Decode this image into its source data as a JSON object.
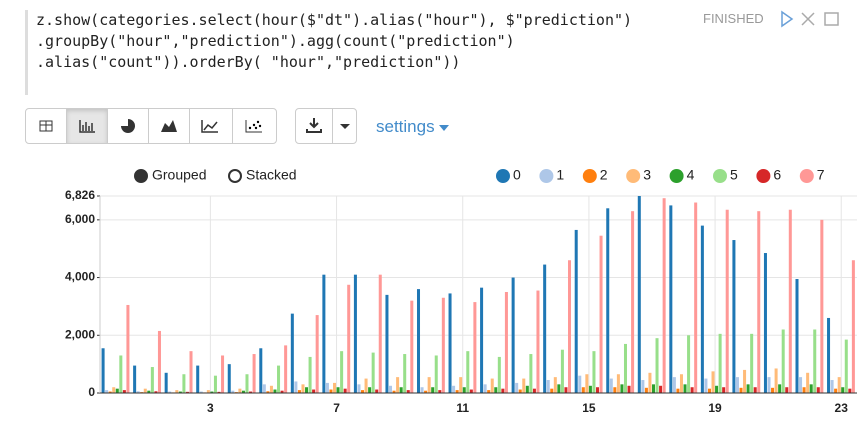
{
  "code": [
    "z.show(categories.select(hour($\"dt\").alias(\"hour\"), $\"prediction\")",
    ".groupBy(\"hour\",\"prediction\").agg(count(\"prediction\")",
    ".alias(\"count\")).orderBy( \"hour\",\"prediction\"))"
  ],
  "status": "FINISHED",
  "settings": "settings",
  "chart_data": {
    "type": "bar",
    "modes": [
      "Grouped",
      "Stacked"
    ],
    "categories": [
      null,
      null,
      null,
      "3",
      null,
      null,
      null,
      "7",
      null,
      null,
      null,
      "11",
      null,
      null,
      null,
      "15",
      null,
      null,
      null,
      "19",
      null,
      null,
      null,
      "23"
    ],
    "ylim": [
      0,
      6826
    ],
    "yticks": [
      0,
      {
        "value": 2000,
        "label": "2,000"
      },
      {
        "value": 4000,
        "label": "4,000"
      },
      {
        "value": 6000,
        "label": "6,000"
      },
      {
        "value": 6826,
        "label": "6,826"
      }
    ],
    "grid": true,
    "series": [
      {
        "name": "0",
        "color": "#1f77b4",
        "values": [
          1550,
          950,
          700,
          950,
          1000,
          1550,
          2750,
          4100,
          4100,
          3400,
          3600,
          3450,
          3650,
          4000,
          4450,
          5650,
          6400,
          6826,
          6500,
          5800,
          5300,
          4850,
          3950,
          2600
        ]
      },
      {
        "name": "1",
        "color": "#aec7e8",
        "values": [
          100,
          60,
          50,
          50,
          80,
          300,
          400,
          350,
          300,
          250,
          200,
          250,
          300,
          350,
          450,
          600,
          500,
          450,
          550,
          500,
          550,
          550,
          550,
          450
        ]
      },
      {
        "name": "2",
        "color": "#ff7f0e",
        "values": [
          50,
          30,
          20,
          20,
          30,
          60,
          100,
          120,
          100,
          80,
          80,
          100,
          100,
          120,
          150,
          200,
          200,
          180,
          150,
          150,
          180,
          180,
          200,
          150
        ]
      },
      {
        "name": "3",
        "color": "#ffbb78",
        "values": [
          200,
          150,
          100,
          100,
          150,
          250,
          300,
          350,
          500,
          550,
          550,
          550,
          500,
          500,
          550,
          650,
          650,
          700,
          650,
          750,
          800,
          850,
          700,
          550
        ]
      },
      {
        "name": "4",
        "color": "#2ca02c",
        "values": [
          150,
          80,
          50,
          50,
          80,
          120,
          200,
          200,
          200,
          200,
          200,
          200,
          200,
          250,
          300,
          250,
          300,
          300,
          300,
          250,
          300,
          300,
          300,
          200
        ]
      },
      {
        "name": "5",
        "color": "#98df8a",
        "values": [
          1300,
          900,
          650,
          600,
          650,
          950,
          1250,
          1450,
          1400,
          1350,
          1300,
          1450,
          1250,
          1350,
          1500,
          1450,
          1700,
          1900,
          2000,
          2050,
          2050,
          2200,
          2200,
          1850
        ]
      },
      {
        "name": "6",
        "color": "#d62728",
        "values": [
          100,
          60,
          40,
          40,
          50,
          80,
          120,
          150,
          120,
          100,
          100,
          120,
          150,
          150,
          200,
          200,
          250,
          250,
          200,
          200,
          200,
          200,
          200,
          150
        ]
      },
      {
        "name": "7",
        "color": "#ff9896",
        "values": [
          3050,
          2150,
          1450,
          1300,
          1350,
          1650,
          2700,
          3750,
          4100,
          3200,
          3300,
          3150,
          3500,
          3550,
          4600,
          5450,
          6300,
          6750,
          6600,
          6350,
          6300,
          6350,
          6000,
          4600
        ]
      }
    ]
  }
}
